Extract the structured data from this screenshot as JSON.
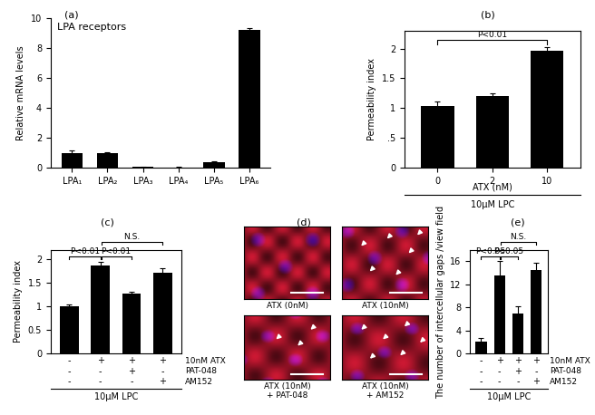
{
  "chart_data": [
    {
      "panel": "(a)",
      "type": "bar",
      "title": "LPA receptors",
      "ylabel": "Relative mRNA levels",
      "categories": [
        "LPA₁",
        "LPA₂",
        "LPA₃",
        "LPA₄",
        "LPA₅",
        "LPA₆"
      ],
      "values": [
        1.0,
        1.0,
        0.05,
        0.03,
        0.35,
        9.2
      ],
      "errors": [
        0.15,
        0.05,
        0.02,
        0.02,
        0.05,
        0.15
      ],
      "color": "#000000",
      "ylim": [
        0,
        10
      ],
      "yticks": [
        0,
        2,
        4,
        6,
        8,
        10
      ]
    },
    {
      "panel": "(b)",
      "type": "bar",
      "ylabel": "Permeability index",
      "xlabel": "ATX (nM)",
      "footer": "10μM LPC",
      "categories": [
        "0",
        "2",
        "10"
      ],
      "values": [
        1.03,
        1.2,
        1.97
      ],
      "errors": [
        0.08,
        0.05,
        0.06
      ],
      "color": "#000000",
      "ylim": [
        0,
        2.3
      ],
      "yticks": [
        0,
        {
          "value": 0.5,
          "label": ".5"
        },
        1,
        1.5,
        2
      ],
      "comparisons": [
        {
          "from": 0,
          "to": 2,
          "label": "P<0.01"
        }
      ]
    },
    {
      "panel": "(c)",
      "type": "bar",
      "ylabel": "Permeability index",
      "footer": "10μM LPC",
      "categories": [
        null,
        null,
        null,
        null
      ],
      "values": [
        1.0,
        1.87,
        1.28,
        1.72
      ],
      "errors": [
        0.05,
        0.08,
        0.04,
        0.09
      ],
      "color": "#000000",
      "ylim": [
        0,
        2.2
      ],
      "yticks": [
        0,
        0.5,
        1,
        1.5,
        2
      ],
      "conditions": [
        {
          "name": "10nM ATX",
          "values": [
            "-",
            "+",
            "+",
            "+"
          ]
        },
        {
          "name": "PAT-048",
          "values": [
            "-",
            "-",
            "+",
            "-"
          ]
        },
        {
          "name": "AM152",
          "values": [
            "-",
            "-",
            "-",
            "+"
          ]
        }
      ],
      "comparisons": [
        {
          "from": 0,
          "to": 1,
          "label": "P<0.01"
        },
        {
          "from": 1,
          "to": 2,
          "label": "P<0.01"
        },
        {
          "from": 1,
          "to": 3,
          "label": "N.S."
        }
      ]
    },
    {
      "panel": "(d)",
      "type": "image",
      "captions": [
        [
          "ATX (0nM)"
        ],
        [
          "ATX (10nM)"
        ],
        [
          "ATX (10nM)",
          "+ PAT-048"
        ],
        [
          "ATX (10nM)",
          "+ AM152"
        ]
      ]
    },
    {
      "panel": "(e)",
      "type": "bar",
      "ylabel": "The number of intercellular gaps /view field",
      "footer": "10μM LPC",
      "categories": [
        null,
        null,
        null,
        null
      ],
      "values": [
        2.0,
        13.5,
        7.0,
        14.5
      ],
      "errors": [
        0.7,
        2.5,
        1.2,
        1.2
      ],
      "color": "#000000",
      "ylim": [
        0,
        18
      ],
      "yticks": [
        0,
        4,
        8,
        12,
        16
      ],
      "conditions": [
        {
          "name": "10nM ATX",
          "values": [
            "-",
            "+",
            "+",
            "+"
          ]
        },
        {
          "name": "PAT-048",
          "values": [
            "-",
            "-",
            "+",
            "-"
          ]
        },
        {
          "name": "AM152",
          "values": [
            "-",
            "-",
            "-",
            "+"
          ]
        }
      ],
      "comparisons": [
        {
          "from": 0,
          "to": 1,
          "label": "P<0.05"
        },
        {
          "from": 1,
          "to": 2,
          "label": "P<0.05"
        },
        {
          "from": 1,
          "to": 3,
          "label": "N.S."
        }
      ]
    }
  ]
}
